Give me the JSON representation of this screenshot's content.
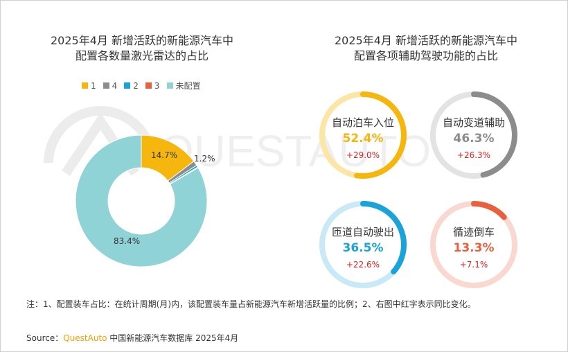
{
  "watermark": {
    "text": "QUESTAUTO"
  },
  "left_chart": {
    "title_line1": "2025年4月 新增活跃的新能源汽车中",
    "title_line2": "配置各数量激光雷达的占比"
  },
  "right_chart": {
    "title_line1": "2025年4月 新增活跃的新能源汽车中",
    "title_line2": "配置各项辅助驾驶功能的占比"
  },
  "colors": {
    "s1": "#f5b60e",
    "s4": "#8c8c8c",
    "s2": "#1aa3d9",
    "s3": "#e8603c",
    "none": "#8fd3d6"
  },
  "chart_data": [
    {
      "type": "pie",
      "variant": "donut",
      "legend_position": "top",
      "legend": [
        "1",
        "4",
        "2",
        "3",
        "未配置"
      ],
      "slices": [
        {
          "legend": "1",
          "value": 14.7,
          "label": "14.7%",
          "color_key": "s1"
        },
        {
          "legend": "4",
          "value": 1.2,
          "label": "1.2%",
          "color_key": "s4"
        },
        {
          "legend": "2",
          "value": 0.5,
          "label": "",
          "color_key": "s2"
        },
        {
          "legend": "3",
          "value": 0.2,
          "label": "",
          "color_key": "s3"
        },
        {
          "legend": "未配置",
          "value": 83.4,
          "label": "83.4%",
          "color_key": "none"
        }
      ]
    },
    {
      "type": "pie",
      "variant": "gauges",
      "items": [
        {
          "name": "自动泊车入位",
          "value": 52.4,
          "value_label": "52.4%",
          "yoy": "+29.0%",
          "color": "#f5b60e",
          "track": "#fbe6a6"
        },
        {
          "name": "自动变道辅助",
          "value": 46.3,
          "value_label": "46.3%",
          "yoy": "+26.3%",
          "color": "#8c8c8c",
          "track": "#e3e3e3"
        },
        {
          "name": "匝道自动驶出",
          "value": 36.5,
          "value_label": "36.5%",
          "yoy": "+22.6%",
          "color": "#1aa3d9",
          "track": "#c9e9f6"
        },
        {
          "name": "循迹倒车",
          "value": 13.3,
          "value_label": "13.3%",
          "yoy": "+7.1%",
          "color": "#e8603c",
          "track": "#f8d8cf"
        }
      ]
    }
  ],
  "note": "注：1、配置装车占比：在统计周期(月)内，该配置装车量占新能源汽车新增活跃量的比例；2、右图中红字表示同比变化。",
  "source": {
    "prefix": "Source：",
    "brand": "QuestAuto",
    "suffix": " 中国新能源汽车数据库 2025年4月"
  }
}
